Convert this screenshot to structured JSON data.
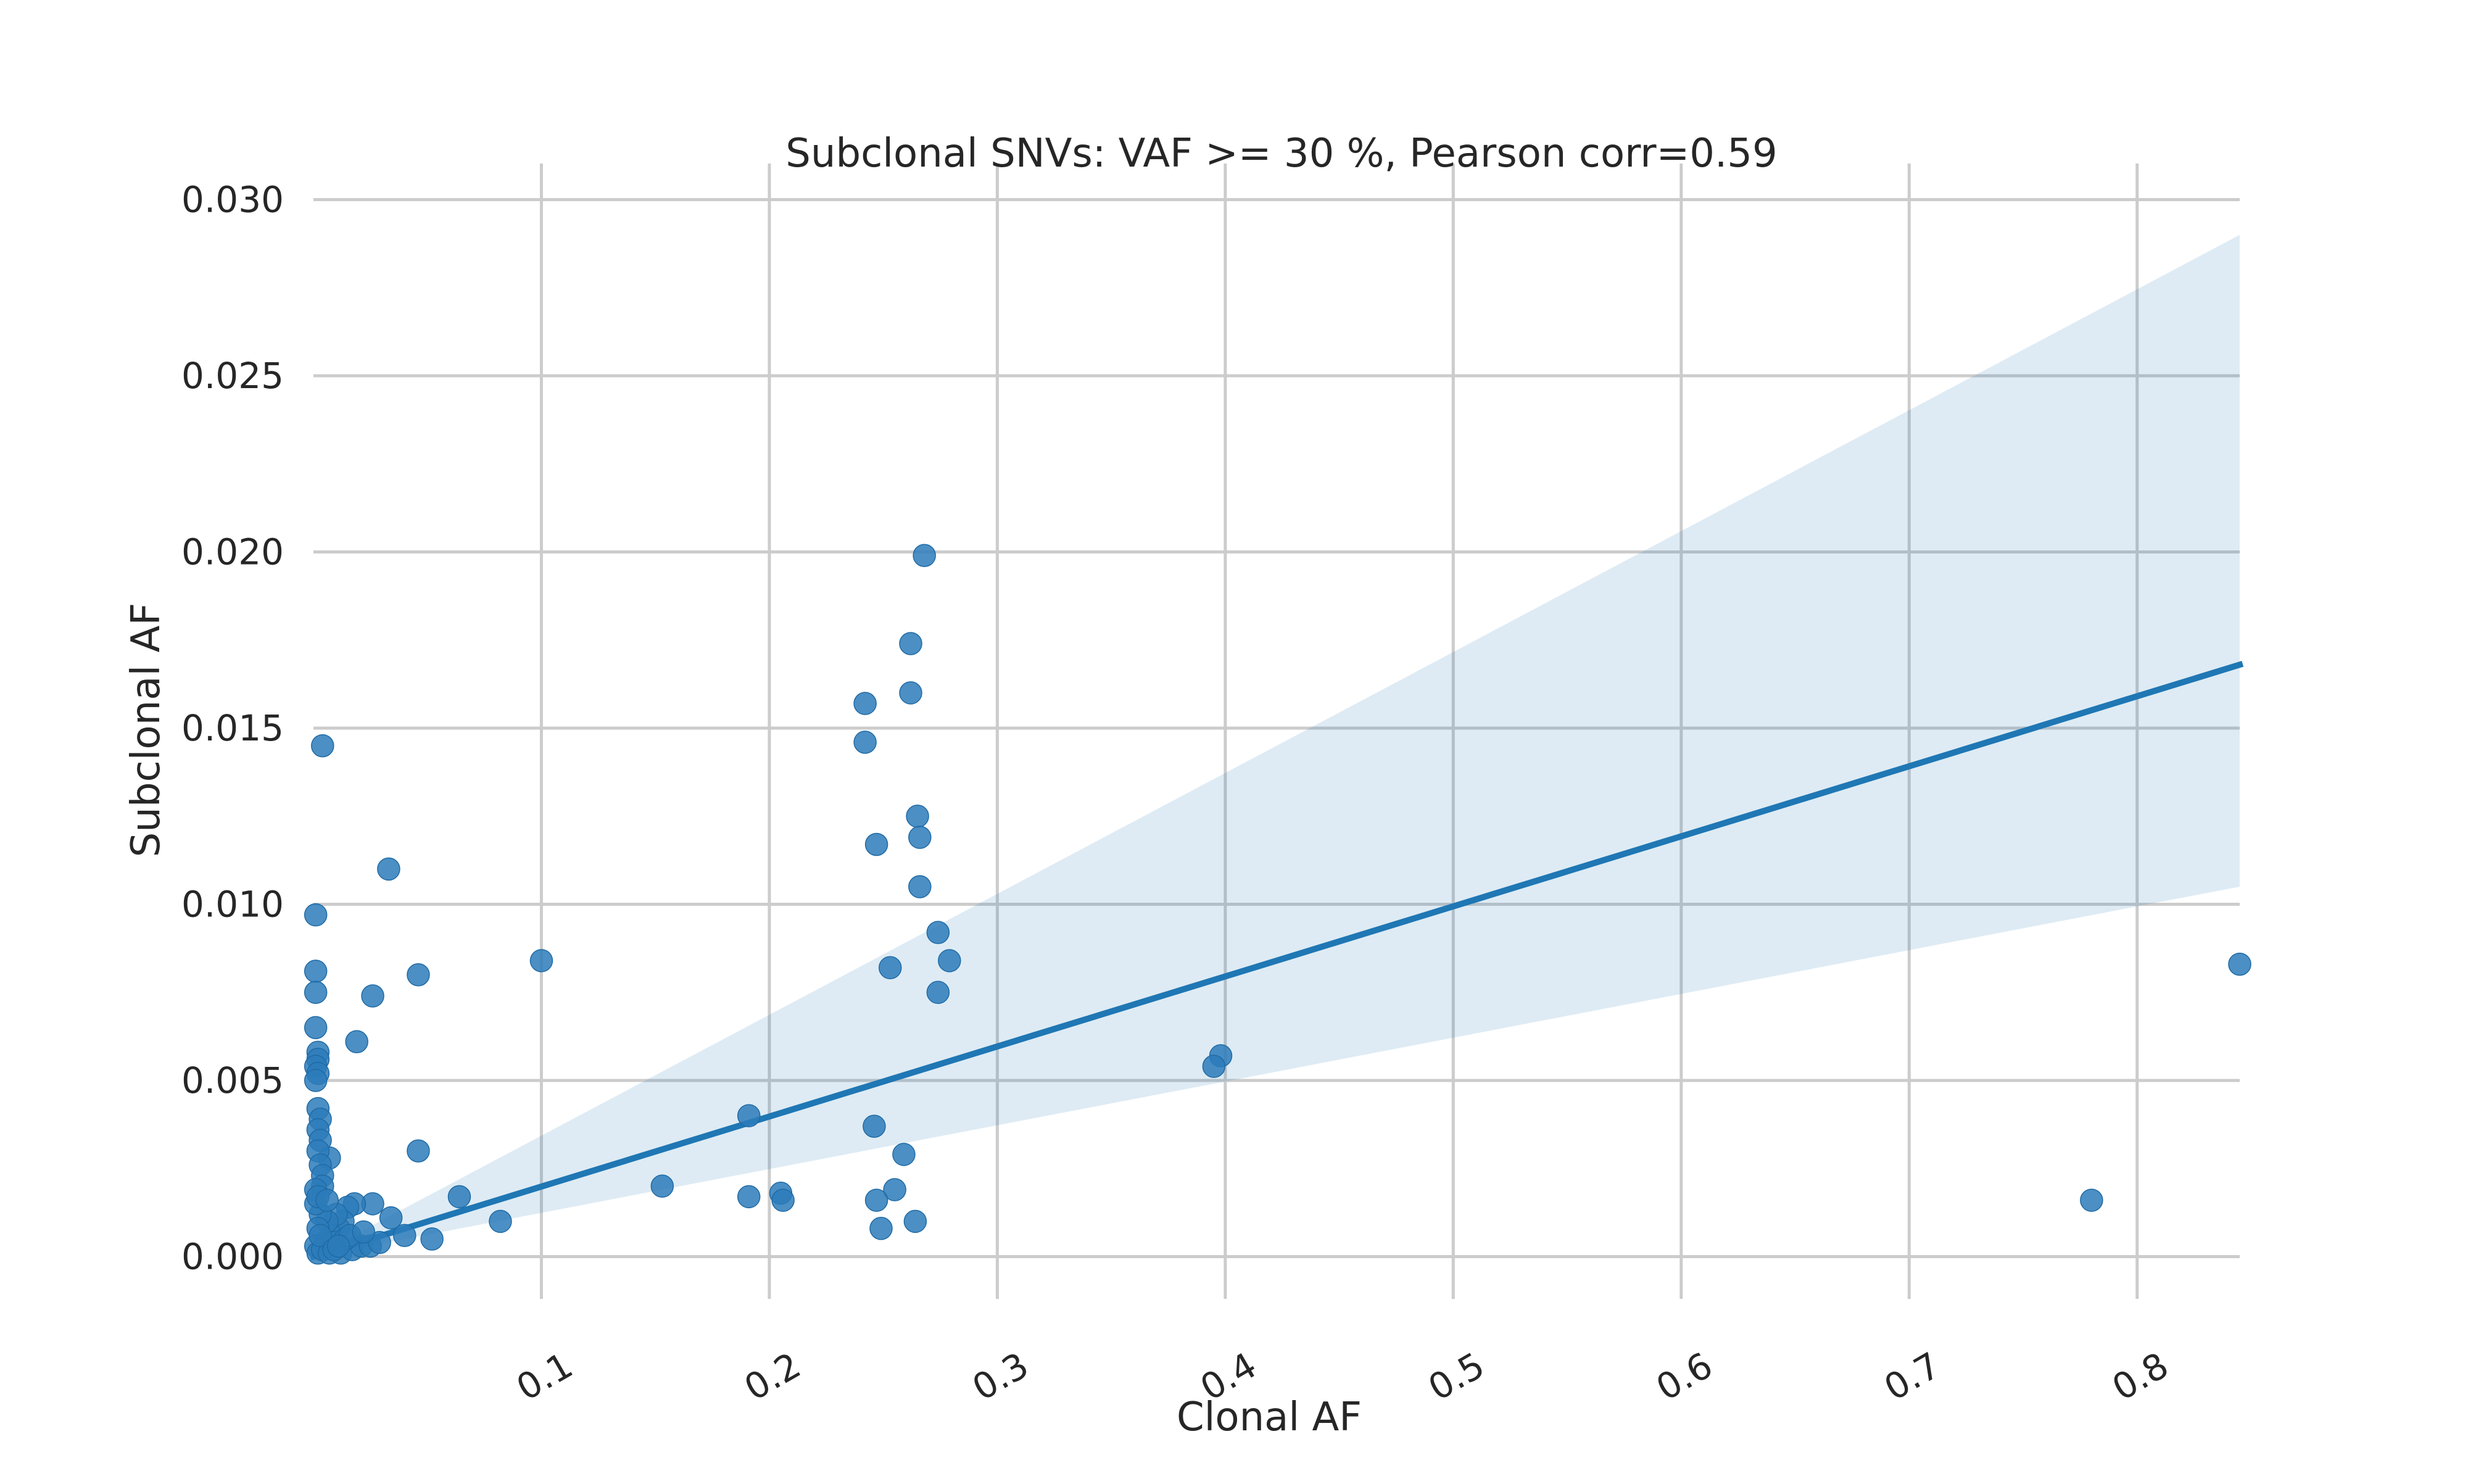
{
  "chart_data": {
    "type": "scatter",
    "title": "Subclonal SNVs: VAF >= 30 %,  Pearson corr=0.59",
    "xlabel": "Clonal AF",
    "ylabel": "Subclonal AF",
    "xlim": [
      0,
      0.845
    ],
    "ylim": [
      -0.0012,
      0.0305
    ],
    "xticks": [
      0.1,
      0.2,
      0.3,
      0.4,
      0.5,
      0.6,
      0.7,
      0.8
    ],
    "xtick_labels": [
      "0.1",
      "0.2",
      "0.3",
      "0.4",
      "0.5",
      "0.6",
      "0.7",
      "0.8"
    ],
    "yticks": [
      0.0,
      0.005,
      0.01,
      0.015,
      0.02,
      0.025,
      0.03
    ],
    "ytick_labels": [
      "0.000",
      "0.005",
      "0.010",
      "0.015",
      "0.020",
      "0.025",
      "0.030"
    ],
    "xtick_rotation_deg": 30,
    "grid": true,
    "point_color": "#2b7bba",
    "line_color": "#1f77b4",
    "ci_color": "#c6dbef",
    "regression": {
      "x": [
        0,
        0.845
      ],
      "y": [
        0.0,
        0.0168
      ],
      "ci_lower": [
        0.0,
        0.0105
      ],
      "ci_upper": [
        0.0,
        0.029
      ]
    },
    "points": [
      [
        0.268,
        0.0199
      ],
      [
        0.262,
        0.0174
      ],
      [
        0.262,
        0.016
      ],
      [
        0.242,
        0.0157
      ],
      [
        0.242,
        0.0146
      ],
      [
        0.265,
        0.0125
      ],
      [
        0.266,
        0.0119
      ],
      [
        0.247,
        0.0117
      ],
      [
        0.266,
        0.0105
      ],
      [
        0.274,
        0.0092
      ],
      [
        0.279,
        0.0084
      ],
      [
        0.253,
        0.0082
      ],
      [
        0.274,
        0.0075
      ],
      [
        0.246,
        0.0037
      ],
      [
        0.259,
        0.0029
      ],
      [
        0.255,
        0.0019
      ],
      [
        0.247,
        0.0016
      ],
      [
        0.249,
        0.0008
      ],
      [
        0.264,
        0.001
      ],
      [
        0.191,
        0.004
      ],
      [
        0.191,
        0.0017
      ],
      [
        0.205,
        0.0018
      ],
      [
        0.206,
        0.0016
      ],
      [
        0.153,
        0.002
      ],
      [
        0.1,
        0.0084
      ],
      [
        0.398,
        0.0057
      ],
      [
        0.395,
        0.0054
      ],
      [
        0.845,
        0.0083
      ],
      [
        0.78,
        0.0016
      ],
      [
        0.004,
        0.0145
      ],
      [
        0.033,
        0.011
      ],
      [
        0.001,
        0.0097
      ],
      [
        0.001,
        0.0081
      ],
      [
        0.046,
        0.008
      ],
      [
        0.026,
        0.0074
      ],
      [
        0.001,
        0.0075
      ],
      [
        0.019,
        0.0061
      ],
      [
        0.001,
        0.0065
      ],
      [
        0.002,
        0.0058
      ],
      [
        0.002,
        0.0056
      ],
      [
        0.001,
        0.0054
      ],
      [
        0.002,
        0.0052
      ],
      [
        0.001,
        0.005
      ],
      [
        0.046,
        0.003
      ],
      [
        0.007,
        0.0028
      ],
      [
        0.002,
        0.0042
      ],
      [
        0.003,
        0.0039
      ],
      [
        0.002,
        0.0036
      ],
      [
        0.003,
        0.0033
      ],
      [
        0.002,
        0.003
      ],
      [
        0.003,
        0.0026
      ],
      [
        0.004,
        0.0023
      ],
      [
        0.004,
        0.002
      ],
      [
        0.064,
        0.0017
      ],
      [
        0.082,
        0.001
      ],
      [
        0.052,
        0.0005
      ],
      [
        0.04,
        0.0006
      ],
      [
        0.026,
        0.0015
      ],
      [
        0.034,
        0.0011
      ],
      [
        0.018,
        0.0015
      ],
      [
        0.015,
        0.0014
      ],
      [
        0.013,
        0.001
      ],
      [
        0.011,
        0.0008
      ],
      [
        0.01,
        0.0012
      ],
      [
        0.008,
        0.0006
      ],
      [
        0.006,
        0.001
      ],
      [
        0.005,
        0.0004
      ],
      [
        0.003,
        0.0012
      ],
      [
        0.002,
        0.0008
      ],
      [
        0.001,
        0.0015
      ],
      [
        0.001,
        0.0003
      ],
      [
        0.002,
        0.0001
      ],
      [
        0.004,
        0.0002
      ],
      [
        0.007,
        0.0001
      ],
      [
        0.012,
        0.0001
      ],
      [
        0.017,
        0.0002
      ],
      [
        0.021,
        0.0003
      ],
      [
        0.025,
        0.0003
      ],
      [
        0.029,
        0.0004
      ],
      [
        0.009,
        0.0004
      ],
      [
        0.014,
        0.0005
      ],
      [
        0.003,
        0.0006
      ],
      [
        0.001,
        0.0019
      ],
      [
        0.002,
        0.0017
      ],
      [
        0.006,
        0.0016
      ],
      [
        0.009,
        0.0002
      ],
      [
        0.016,
        0.0006
      ],
      [
        0.022,
        0.0007
      ],
      [
        0.011,
        0.0003
      ]
    ]
  }
}
